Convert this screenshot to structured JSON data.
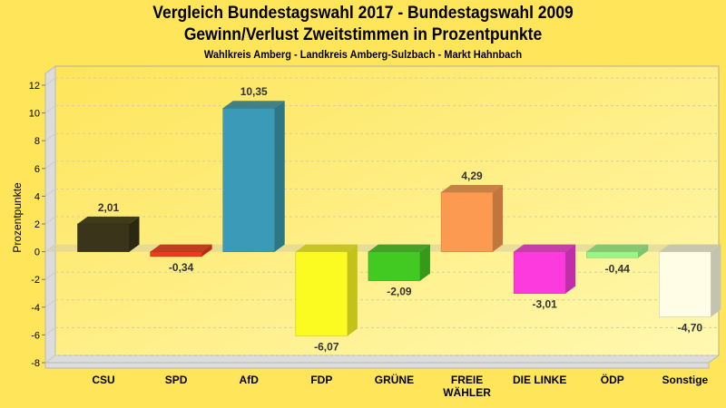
{
  "chart_data": {
    "type": "bar",
    "title": "Vergleich Bundestagswahl 2017 - Bundestagswahl 2009",
    "subtitle": "Gewinn/Verlust Zweitstimmen in Prozentpunkte",
    "caption": "Wahlkreis Amberg - Landkreis Amberg-Sulzbach - Markt Hahnbach",
    "xlabel": "",
    "ylabel": "Prozentpunkte",
    "ylim": [
      -8,
      12
    ],
    "yticks": [
      12,
      10,
      8,
      6,
      4,
      2,
      0,
      -2,
      -4,
      -6,
      -8
    ],
    "ytick_labels": [
      "12",
      "10",
      "8",
      "6",
      "4",
      "2",
      "0",
      "-2",
      "-4",
      "-6",
      "-8"
    ],
    "grid": true,
    "style": "3d",
    "categories": [
      [
        "CSU"
      ],
      [
        "SPD"
      ],
      [
        "AfD"
      ],
      [
        "FDP"
      ],
      [
        "GRÜNE"
      ],
      [
        "FREIE",
        "WÄHLER"
      ],
      [
        "DIE LINKE"
      ],
      [
        "ÖDP"
      ],
      [
        "Sonstige"
      ]
    ],
    "category_names": [
      "CSU",
      "SPD",
      "AfD",
      "FDP",
      "GRÜNE",
      "FREIE WÄHLER",
      "DIE LINKE",
      "ÖDP",
      "Sonstige"
    ],
    "values": [
      2.01,
      -0.34,
      10.35,
      -6.07,
      -2.09,
      4.29,
      -3.01,
      -0.44,
      -4.7
    ],
    "value_labels": [
      "2,01",
      "-0,34",
      "10,35",
      "-6,07",
      "-2,09",
      "4,29",
      "-3,01",
      "-0,44",
      "-4,70"
    ],
    "colors": [
      "#3a341a",
      "#f03a1c",
      "#3a9ab8",
      "#fbfb22",
      "#42c922",
      "#fc9a52",
      "#fc3ade",
      "#9af586",
      "#fffde6"
    ],
    "side_colors": [
      "#2b2712",
      "#b82c15",
      "#2d7686",
      "#c3c21a",
      "#35991b",
      "#c2763d",
      "#c02ea8",
      "#7cc46d",
      "#c4c3b0"
    ]
  }
}
